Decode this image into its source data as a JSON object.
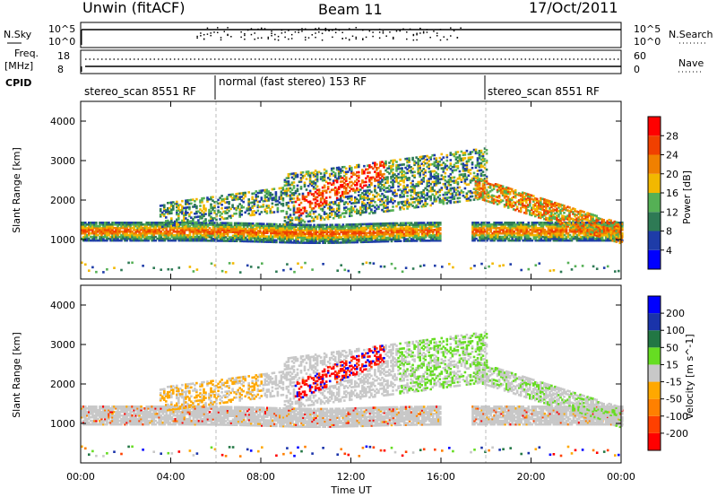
{
  "header": {
    "station": "Unwin (fitACF)",
    "beam": "Beam 11",
    "date": "17/Oct/2011"
  },
  "side_labels": {
    "nsky": "N.Sky",
    "freq": "Freq.",
    "freq_unit": "[MHz]",
    "cpid": "CPID",
    "nsearch": "N.Search",
    "nave": "Nave"
  },
  "strip_ticks": {
    "noise_left": [
      "10^5",
      "10^0"
    ],
    "noise_right": [
      "10^5",
      "10^0"
    ],
    "freq_left": [
      "18",
      "8"
    ],
    "nave_right": [
      "60",
      "0"
    ]
  },
  "cpid_segments": [
    {
      "label": "stereo_scan 8551 RF"
    },
    {
      "label": "normal (fast stereo) 153 RF"
    },
    {
      "label": "stereo_scan 8551 RF"
    }
  ],
  "colors": {
    "power": [
      "#0000ff",
      "#1e3ca8",
      "#2e7a55",
      "#55b055",
      "#f2b800",
      "#f08000",
      "#f04000",
      "#ff0000"
    ],
    "velocity": [
      "#ff0000",
      "#ff4000",
      "#ff8000",
      "#ffa800",
      "#c8c8c8",
      "#66dd22",
      "#227744",
      "#1a33aa",
      "#0000ff"
    ]
  },
  "chart_data": [
    {
      "type": "heatmap",
      "title": "",
      "xlabel": "Time UT",
      "ylabel": "Slant Range [km]",
      "xlim": [
        "00:00",
        "24:00"
      ],
      "ylim": [
        0,
        4500
      ],
      "x_ticks": [
        "00:00",
        "04:00",
        "08:00",
        "12:00",
        "16:00",
        "20:00",
        "00:00"
      ],
      "y_ticks": [
        1000,
        2000,
        3000,
        4000
      ],
      "colorbar": {
        "label": "Power [dB]",
        "ticks": [
          4,
          8,
          12,
          16,
          20,
          24,
          28
        ],
        "range": [
          0,
          32
        ]
      },
      "regions": [
        {
          "name": "main_band",
          "t_start": 0,
          "t_end": 24,
          "range_km": "900-1500"
        },
        {
          "name": "upper_band",
          "t_start": 4,
          "t_end": 18,
          "range_km": "1500-3200"
        },
        {
          "name": "evening_band",
          "t_start": 17.5,
          "t_end": 24,
          "range_km": "900-2500"
        }
      ],
      "mode_change_times": [
        "06:00",
        "18:00"
      ]
    },
    {
      "type": "heatmap",
      "title": "",
      "xlabel": "Time UT",
      "ylabel": "Slant Range [km]",
      "xlim": [
        "00:00",
        "24:00"
      ],
      "ylim": [
        0,
        4500
      ],
      "x_ticks": [
        "00:00",
        "04:00",
        "08:00",
        "12:00",
        "16:00",
        "20:00",
        "00:00"
      ],
      "y_ticks": [
        1000,
        2000,
        3000,
        4000
      ],
      "colorbar": {
        "label": "Velocity [m s^-1]",
        "ticks": [
          -200,
          -100,
          -50,
          -15,
          15,
          50,
          100,
          200
        ]
      },
      "mode_change_times": [
        "06:00",
        "18:00"
      ]
    }
  ]
}
